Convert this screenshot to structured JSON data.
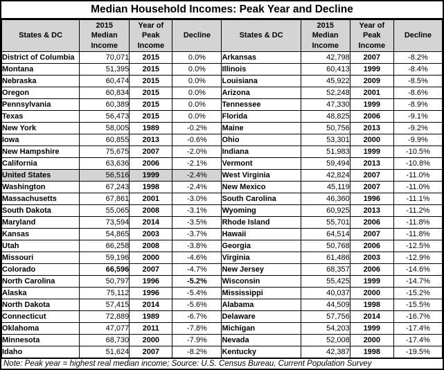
{
  "title": "Median Household Incomes: Peak Year and Decline",
  "header": {
    "state_label": "States & DC",
    "income_lines": [
      "2015",
      "Median",
      "Income"
    ],
    "year_lines": [
      "Year of",
      "Peak",
      "Income"
    ],
    "decline_label": "Decline"
  },
  "note": "Note: Peak year = highest real median income; Source:  U.S. Census Bureau, Current Population Survey",
  "colors": {
    "header_bg": "#d4d4d4",
    "highlight_bg": "#d4d4d4",
    "border": "#000000",
    "background": "#ffffff"
  },
  "chart_data": {
    "type": "table",
    "title": "Median Household Incomes: Peak Year and Decline",
    "columns": [
      "States & DC",
      "2015 Median Income",
      "Year of Peak Income",
      "Decline"
    ],
    "layout_hint": "two side-by-side four-column panels, 26 rows each; United States row highlighted gray",
    "rows": [
      {
        "left": {
          "state": "District of Columbia",
          "income": "70,071",
          "year": "2015",
          "decline": "0.0%"
        },
        "right": {
          "state": "Arkansas",
          "income": "42,798",
          "year": "2007",
          "decline": "-8.2%"
        }
      },
      {
        "left": {
          "state": "Montana",
          "income": "51,395",
          "year": "2015",
          "decline": "0.0%"
        },
        "right": {
          "state": "Illinois",
          "income": "60,413",
          "year": "1999",
          "decline": "-8.4%"
        }
      },
      {
        "left": {
          "state": "Nebraska",
          "income": "60,474",
          "year": "2015",
          "decline": "0.0%"
        },
        "right": {
          "state": "Louisiana",
          "income": "45,922",
          "year": "2009",
          "decline": "-8.5%"
        }
      },
      {
        "left": {
          "state": "Oregon",
          "income": "60,834",
          "year": "2015",
          "decline": "0.0%"
        },
        "right": {
          "state": "Arizona",
          "income": "52,248",
          "year": "2001",
          "decline": "-8.6%"
        }
      },
      {
        "left": {
          "state": "Pennsylvania",
          "income": "60,389",
          "year": "2015",
          "decline": "0.0%"
        },
        "right": {
          "state": "Tennessee",
          "income": "47,330",
          "year": "1999",
          "decline": "-8.9%"
        }
      },
      {
        "left": {
          "state": "Texas",
          "income": "56,473",
          "year": "2015",
          "decline": "0.0%"
        },
        "right": {
          "state": "Florida",
          "income": "48,825",
          "year": "2006",
          "decline": "-9.1%"
        }
      },
      {
        "left": {
          "state": "New York",
          "income": "58,005",
          "year": "1989",
          "decline": "-0.2%"
        },
        "right": {
          "state": "Maine",
          "income": "50,756",
          "year": "2013",
          "decline": "-9.2%"
        }
      },
      {
        "left": {
          "state": "Iowa",
          "income": "60,855",
          "year": "2013",
          "decline": "-0.6%"
        },
        "right": {
          "state": "Ohio",
          "income": "53,301",
          "year": "2000",
          "decline": "-9.9%"
        }
      },
      {
        "left": {
          "state": "New Hampshire",
          "income": "75,675",
          "year": "2007",
          "decline": "-2.0%"
        },
        "right": {
          "state": "Indiana",
          "income": "51,983",
          "year": "1999",
          "decline": "-10.5%"
        }
      },
      {
        "left": {
          "state": "California",
          "income": "63,636",
          "year": "2006",
          "decline": "-2.1%"
        },
        "right": {
          "state": "Vermont",
          "income": "59,494",
          "year": "2013",
          "decline": "-10.8%"
        }
      },
      {
        "left": {
          "state": "United States",
          "income": "56,516",
          "year": "1999",
          "decline": "-2.4%",
          "highlight": true
        },
        "right": {
          "state": "West Virginia",
          "income": "42,824",
          "year": "2007",
          "decline": "-11.0%"
        }
      },
      {
        "left": {
          "state": "Washington",
          "income": "67,243",
          "year": "1998",
          "decline": "-2.4%"
        },
        "right": {
          "state": "New Mexico",
          "income": "45,119",
          "year": "2007",
          "decline": "-11.0%"
        }
      },
      {
        "left": {
          "state": "Massachusetts",
          "income": "67,861",
          "year": "2001",
          "decline": "-3.0%"
        },
        "right": {
          "state": "South Carolina",
          "income": "46,360",
          "year": "1996",
          "decline": "-11.1%"
        }
      },
      {
        "left": {
          "state": "South Dakota",
          "income": "55,065",
          "year": "2008",
          "decline": "-3.1%"
        },
        "right": {
          "state": "Wyoming",
          "income": "60,925",
          "year": "2013",
          "decline": "-11.2%"
        }
      },
      {
        "left": {
          "state": "Maryland",
          "income": "73,594",
          "year": "2014",
          "decline": "-3.5%"
        },
        "right": {
          "state": "Rhode Island",
          "income": "55,701",
          "year": "2006",
          "decline": "-11.8%"
        }
      },
      {
        "left": {
          "state": "Kansas",
          "income": "54,865",
          "year": "2003",
          "decline": "-3.7%"
        },
        "right": {
          "state": "Hawaii",
          "income": "64,514",
          "year": "2007",
          "decline": "-11.8%"
        }
      },
      {
        "left": {
          "state": "Utah",
          "income": "66,258",
          "year": "2008",
          "decline": "-3.8%"
        },
        "right": {
          "state": "Georgia",
          "income": "50,768",
          "year": "2006",
          "decline": "-12.5%"
        }
      },
      {
        "left": {
          "state": "Missouri",
          "income": "59,196",
          "year": "2000",
          "decline": "-4.6%"
        },
        "right": {
          "state": "Virginia",
          "income": "61,486",
          "year": "2003",
          "decline": "-12.9%"
        }
      },
      {
        "left": {
          "state": "Colorado",
          "income": "66,596",
          "year": "2007",
          "decline": "-4.7%",
          "income_bold": true
        },
        "right": {
          "state": "New Jersey",
          "income": "68,357",
          "year": "2006",
          "decline": "-14.6%"
        }
      },
      {
        "left": {
          "state": "North Carolina",
          "income": "50,797",
          "year": "1996",
          "decline": "-5.2%",
          "decline_bold": true
        },
        "right": {
          "state": "Wisconsin",
          "income": "55,425",
          "year": "1999",
          "decline": "-14.7%"
        }
      },
      {
        "left": {
          "state": "Alaska",
          "income": "75,112",
          "year": "1996",
          "decline": "-5.4%"
        },
        "right": {
          "state": "Mississippi",
          "income": "40,037",
          "year": "2000",
          "decline": "-15.2%"
        }
      },
      {
        "left": {
          "state": "North Dakota",
          "income": "57,415",
          "year": "2014",
          "decline": "-5.6%"
        },
        "right": {
          "state": "Alabama",
          "income": "44,509",
          "year": "1998",
          "decline": "-15.5%"
        }
      },
      {
        "left": {
          "state": "Connecticut",
          "income": "72,889",
          "year": "1989",
          "decline": "-6.7%"
        },
        "right": {
          "state": "Delaware",
          "income": "57,756",
          "year": "2014",
          "decline": "-16.7%"
        }
      },
      {
        "left": {
          "state": "Oklahoma",
          "income": "47,077",
          "year": "2011",
          "decline": "-7.8%"
        },
        "right": {
          "state": "Michigan",
          "income": "54,203",
          "year": "1999",
          "decline": "-17.4%"
        }
      },
      {
        "left": {
          "state": "Minnesota",
          "income": "68,730",
          "year": "2000",
          "decline": "-7.9%"
        },
        "right": {
          "state": "Nevada",
          "income": "52,008",
          "year": "2000",
          "decline": "-17.4%"
        }
      },
      {
        "left": {
          "state": "Idaho",
          "income": "51,624",
          "year": "2007",
          "decline": "-8.2%"
        },
        "right": {
          "state": "Kentucky",
          "income": "42,387",
          "year": "1998",
          "decline": "-19.5%"
        }
      }
    ],
    "note": "Note: Peak year = highest real median income; Source:  U.S. Census Bureau, Current Population Survey"
  }
}
